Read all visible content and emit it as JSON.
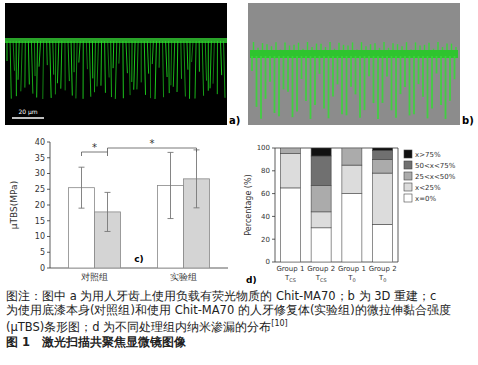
{
  "images": [
    {
      "label": "a)",
      "scale_bar": "20 μm"
    },
    {
      "label": "b)"
    }
  ],
  "chart_data": [
    {
      "type": "bar",
      "label": "c)",
      "y_label": "μTBS(MPa)",
      "categories": [
        "对照组",
        "实验组"
      ],
      "series": [
        {
          "color": "#ffffff",
          "values": [
            25.5,
            26.2
          ],
          "errors": [
            6.5,
            10.5
          ]
        },
        {
          "color": "#d4d4d4",
          "values": [
            17.8,
            28.3
          ],
          "errors": [
            6.2,
            9.2
          ]
        }
      ],
      "ylim": [
        0,
        40
      ],
      "yticks": [
        0,
        5,
        10,
        15,
        20,
        25,
        30,
        35,
        40
      ],
      "grid": false,
      "annotations": [
        "*",
        "*"
      ]
    },
    {
      "type": "bar",
      "stacked": true,
      "label": "d)",
      "y_label": "Percentage (%)",
      "categories": [
        "Group 1 TCS",
        "Group 2 TCS",
        "Group 1 T0",
        "Group 2 T0"
      ],
      "series": [
        {
          "name": "x=0%",
          "color": "#ffffff",
          "values": [
            65,
            30,
            60,
            33
          ]
        },
        {
          "name": "x<25%",
          "color": "#dcdcdc",
          "values": [
            30,
            14,
            25,
            45
          ]
        },
        {
          "name": "25<x<50%",
          "color": "#ababab",
          "values": [
            5,
            23,
            15,
            12
          ]
        },
        {
          "name": "50<x<75%",
          "color": "#707070",
          "values": [
            0,
            26,
            0,
            8
          ]
        },
        {
          "name": "x>75%",
          "color": "#111111",
          "values": [
            0,
            7,
            0,
            2
          ]
        }
      ],
      "ylim": [
        0,
        100
      ],
      "yticks": [
        0,
        20,
        40,
        60,
        80,
        100
      ],
      "grid": false,
      "legend": "right"
    }
  ],
  "caption": {
    "note": "图注：图中 a 为用人牙齿上使用负载有荧光物质的 Chit-MA70；b 为 3D 重建；c 为使用底漆本身(对照组)和使用 Chit-MA70 的人牙修复体(实验组)的微拉伸黏合强度(μTBS)条形图；d 为不同处理组内纳米渗漏的分布",
    "note_ref": "[10]",
    "title": "图 1   激光扫描共聚焦显微镜图像"
  }
}
